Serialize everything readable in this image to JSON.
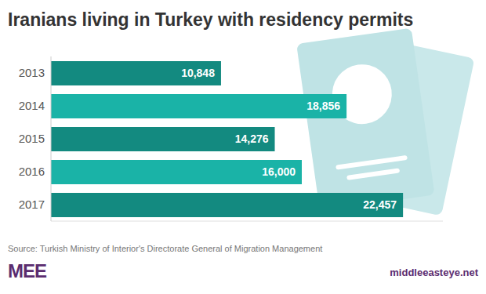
{
  "chart_data": {
    "type": "bar",
    "orientation": "horizontal",
    "title": "Iranians living in Turkey with residency permits",
    "categories": [
      "2013",
      "2014",
      "2015",
      "2016",
      "2017"
    ],
    "values": [
      10848,
      18856,
      14276,
      16000,
      22457
    ],
    "value_labels": [
      "10,848",
      "18,856",
      "14,276",
      "16,000",
      "22,457"
    ],
    "colors": [
      "#138a80",
      "#1ab3a7",
      "#138a80",
      "#1ab3a7",
      "#138a80"
    ],
    "data_labels": true,
    "tick_labels": "y",
    "grid": false,
    "xlim": [
      0,
      25000
    ],
    "source": "Source: Turkish Ministry of Interior's Directorate General of Migration Management",
    "annotations": [
      "MEE",
      "middleeasteye.net"
    ]
  }
}
